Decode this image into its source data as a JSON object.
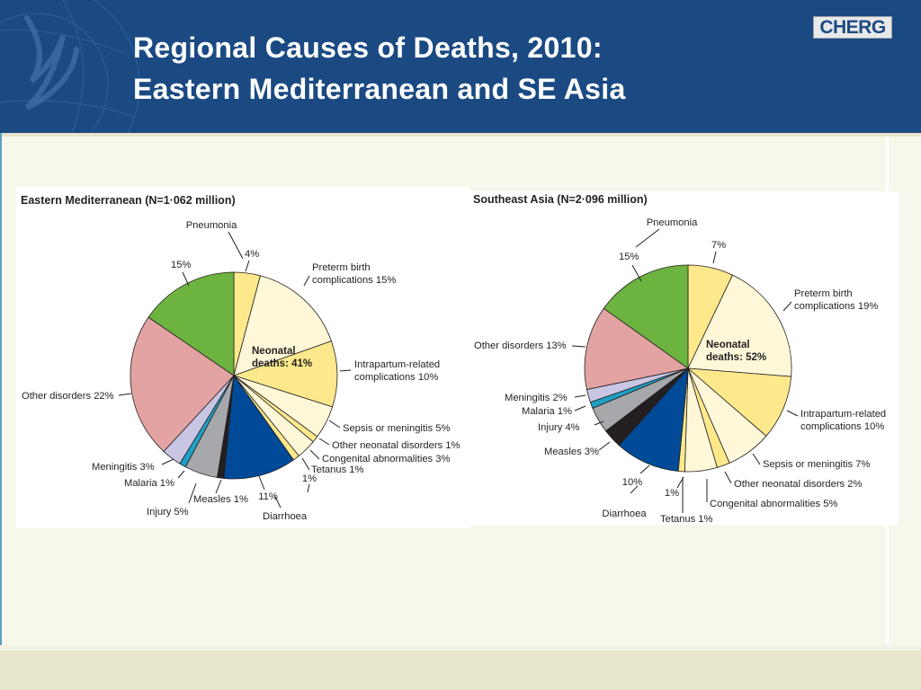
{
  "slide": {
    "title_line1": "Regional Causes of Deaths, 2010:",
    "title_line2": "Eastern Mediterranean and SE Asia",
    "logo_text": "CHERG"
  },
  "colors": {
    "header_bg": "#1b4a82",
    "slide_bg": "#f7f7ec",
    "pneumonia": "#fde98c",
    "preterm": "#fef8d9",
    "intrapartum": "#fde98c",
    "sepsis": "#fef8d9",
    "other_neonatal": "#fde98c",
    "congenital": "#fef8d9",
    "tetanus": "#fde98c",
    "diarrhoea": "#004a97",
    "measles": "#231f20",
    "injury": "#a6a8ab",
    "malaria": "#1f9fc4",
    "meningitis": "#c9c6e4",
    "other_disorders": "#e2a3a2",
    "pneumonia_postneonatal": "#6db33f"
  },
  "chart_data": [
    {
      "type": "pie",
      "title": "Eastern Mediterranean (N=1·062 million)",
      "center_label_line1": "Neonatal",
      "center_label_line2": "deaths: 41%",
      "slices": [
        {
          "key": "pneumonia",
          "value": 4,
          "label_lines": [
            "4%"
          ]
        },
        {
          "key": "preterm",
          "value": 15,
          "label_lines": [
            "Preterm birth",
            "complications 15%"
          ]
        },
        {
          "key": "intrapartum",
          "value": 10,
          "label_lines": [
            "Intrapartum-related",
            "complications 10%"
          ]
        },
        {
          "key": "sepsis",
          "value": 5,
          "label_lines": [
            "Sepsis or meningitis 5%"
          ]
        },
        {
          "key": "other_neonatal",
          "value": 1,
          "label_lines": [
            "Other neonatal disorders 1%"
          ]
        },
        {
          "key": "congenital",
          "value": 3,
          "label_lines": [
            "Congenital abnormalities 3%"
          ]
        },
        {
          "key": "tetanus",
          "value": 1,
          "label_lines": [
            "Tetanus 1%"
          ]
        },
        {
          "key": "diarrhoea",
          "value": 11,
          "label_lines": [
            "11%"
          ]
        },
        {
          "key": "measles",
          "value": 1,
          "label_lines": [
            "Measles 1%"
          ]
        },
        {
          "key": "injury",
          "value": 5,
          "label_lines": [
            "Injury 5%"
          ]
        },
        {
          "key": "malaria",
          "value": 1,
          "label_lines": [
            "Malaria 1%"
          ]
        },
        {
          "key": "meningitis",
          "value": 3,
          "label_lines": [
            "Meningitis 3%"
          ]
        },
        {
          "key": "other_disorders",
          "value": 22,
          "label_lines": [
            "Other disorders 22%"
          ]
        },
        {
          "key": "pneumonia_postneonatal",
          "value": 15,
          "label_lines": [
            "15%"
          ]
        }
      ],
      "extra_labels": [
        "Pneumonia",
        "Diarrhoea",
        "1%"
      ]
    },
    {
      "type": "pie",
      "title": "Southeast Asia (N=2·096 million)",
      "center_label_line1": "Neonatal",
      "center_label_line2": "deaths: 52%",
      "slices": [
        {
          "key": "pneumonia",
          "value": 7,
          "label_lines": [
            "7%"
          ]
        },
        {
          "key": "preterm",
          "value": 19,
          "label_lines": [
            "Preterm birth",
            "complications 19%"
          ]
        },
        {
          "key": "intrapartum",
          "value": 10,
          "label_lines": [
            "Intrapartum-related",
            "complications 10%"
          ]
        },
        {
          "key": "sepsis",
          "value": 7,
          "label_lines": [
            "Sepsis or meningitis 7%"
          ]
        },
        {
          "key": "other_neonatal",
          "value": 2,
          "label_lines": [
            "Other neonatal disorders 2%"
          ]
        },
        {
          "key": "congenital",
          "value": 5,
          "label_lines": [
            "Congenital abnormalities 5%"
          ]
        },
        {
          "key": "tetanus",
          "value": 1,
          "label_lines": [
            "Tetanus 1%"
          ]
        },
        {
          "key": "diarrhoea",
          "value": 10,
          "label_lines": [
            "10%"
          ]
        },
        {
          "key": "measles",
          "value": 3,
          "label_lines": [
            "Measles 3%"
          ]
        },
        {
          "key": "injury",
          "value": 4,
          "label_lines": [
            "Injury 4%"
          ]
        },
        {
          "key": "malaria",
          "value": 1,
          "label_lines": [
            "Malaria 1%"
          ]
        },
        {
          "key": "meningitis",
          "value": 2,
          "label_lines": [
            "Meningitis 2%"
          ]
        },
        {
          "key": "other_disorders",
          "value": 13,
          "label_lines": [
            "Other disorders 13%"
          ]
        },
        {
          "key": "pneumonia_postneonatal",
          "value": 15,
          "label_lines": [
            "15%"
          ]
        }
      ],
      "extra_labels": [
        "Pneumonia",
        "Diarrhoea",
        "1%"
      ]
    }
  ]
}
